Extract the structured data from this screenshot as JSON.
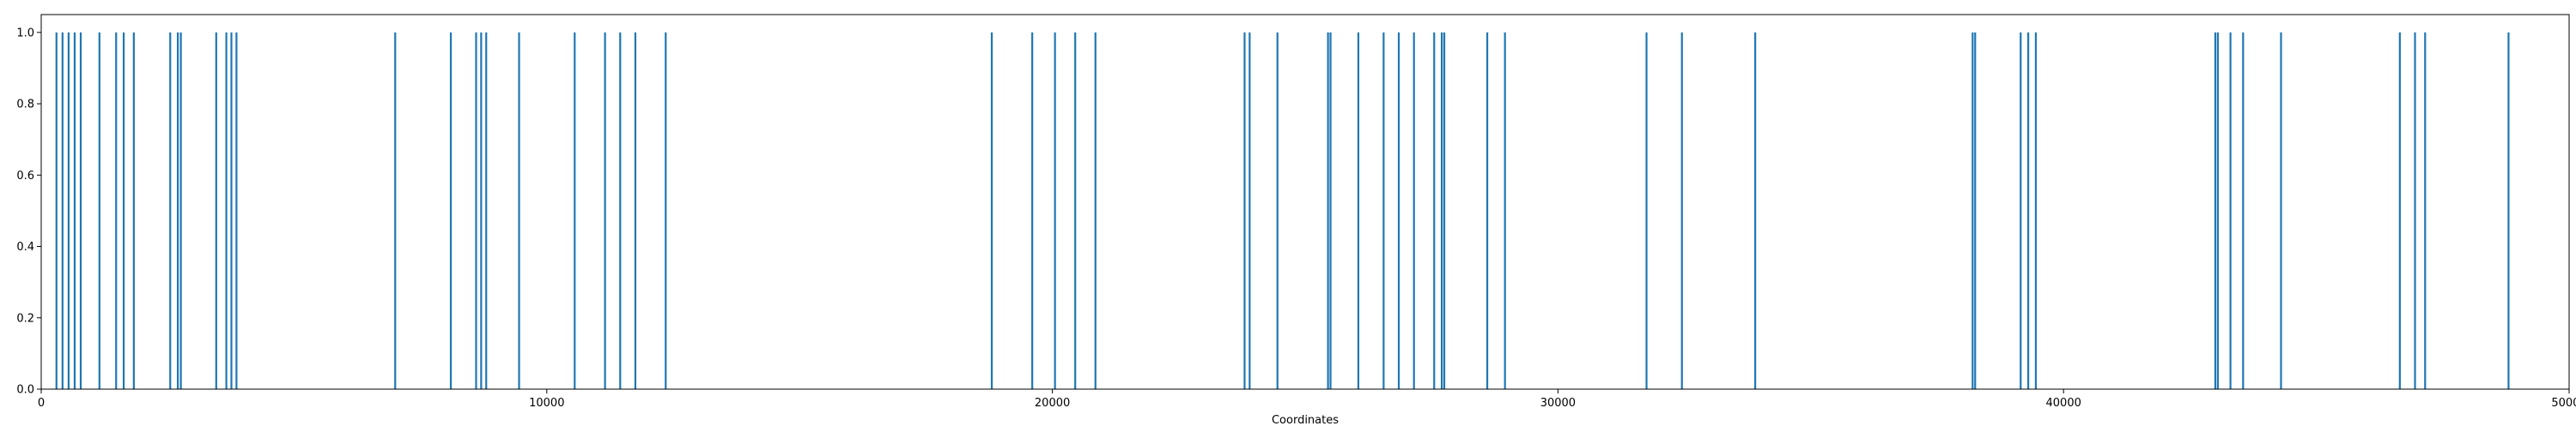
{
  "chart_data": {
    "type": "bar",
    "title": "",
    "xlabel": "Coordinates",
    "ylabel": "",
    "xlim": [
      0,
      50000
    ],
    "ylim": [
      0,
      1.05
    ],
    "grid": false,
    "legend": "none",
    "bar_color": "#1f77b4",
    "x_ticks": [
      0,
      10000,
      20000,
      30000,
      40000,
      50000
    ],
    "x_tick_labels": [
      "0",
      "10000",
      "20000",
      "30000",
      "40000",
      "50000"
    ],
    "y_ticks": [
      0.0,
      0.2,
      0.4,
      0.6,
      0.8,
      1.0
    ],
    "y_tick_labels": [
      "0.0",
      "0.2",
      "0.4",
      "0.6",
      "0.8",
      "1.0"
    ],
    "x": [
      300,
      420,
      540,
      660,
      780,
      1150,
      1480,
      1630,
      1830,
      2550,
      2700,
      2760,
      3460,
      3660,
      3760,
      3860,
      7000,
      8100,
      8600,
      8700,
      8800,
      9450,
      10550,
      11150,
      11450,
      11750,
      12350,
      18800,
      19600,
      20050,
      20450,
      20850,
      23800,
      23900,
      24450,
      25450,
      25500,
      26050,
      26550,
      26850,
      27150,
      27550,
      27700,
      27750,
      28600,
      28950,
      31750,
      32450,
      33900,
      38200,
      38250,
      39150,
      39300,
      39450,
      43000,
      43050,
      43300,
      43550,
      44300,
      46650,
      46950,
      47150,
      48800
    ],
    "values": [
      1,
      1,
      1,
      1,
      1,
      1,
      1,
      1,
      1,
      1,
      1,
      1,
      1,
      1,
      1,
      1,
      1,
      1,
      1,
      1,
      1,
      1,
      1,
      1,
      1,
      1,
      1,
      1,
      1,
      1,
      1,
      1,
      1,
      1,
      1,
      1,
      1,
      1,
      1,
      1,
      1,
      1,
      1,
      1,
      1,
      1,
      1,
      1,
      1,
      1,
      1,
      1,
      1,
      1,
      1,
      1,
      1,
      1,
      1,
      1,
      1,
      1,
      1
    ]
  }
}
